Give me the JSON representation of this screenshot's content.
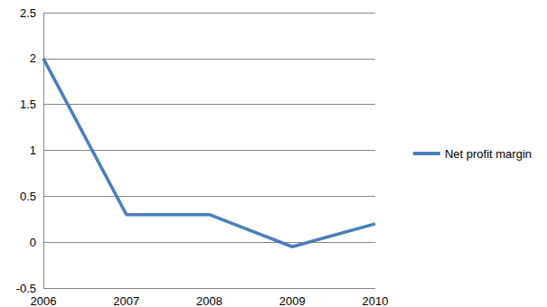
{
  "chart_data": {
    "type": "line",
    "categories": [
      "2006",
      "2007",
      "2008",
      "2009",
      "2010"
    ],
    "series": [
      {
        "name": "Net profit margin",
        "color": "#4a7ebb",
        "values": [
          2,
          0.3,
          0.3,
          -0.05,
          0.2
        ]
      }
    ],
    "ylim": [
      -0.5,
      2.5
    ],
    "yticks": [
      -0.5,
      0,
      0.5,
      1,
      1.5,
      2,
      2.5
    ],
    "grid": true,
    "legend": "right"
  }
}
